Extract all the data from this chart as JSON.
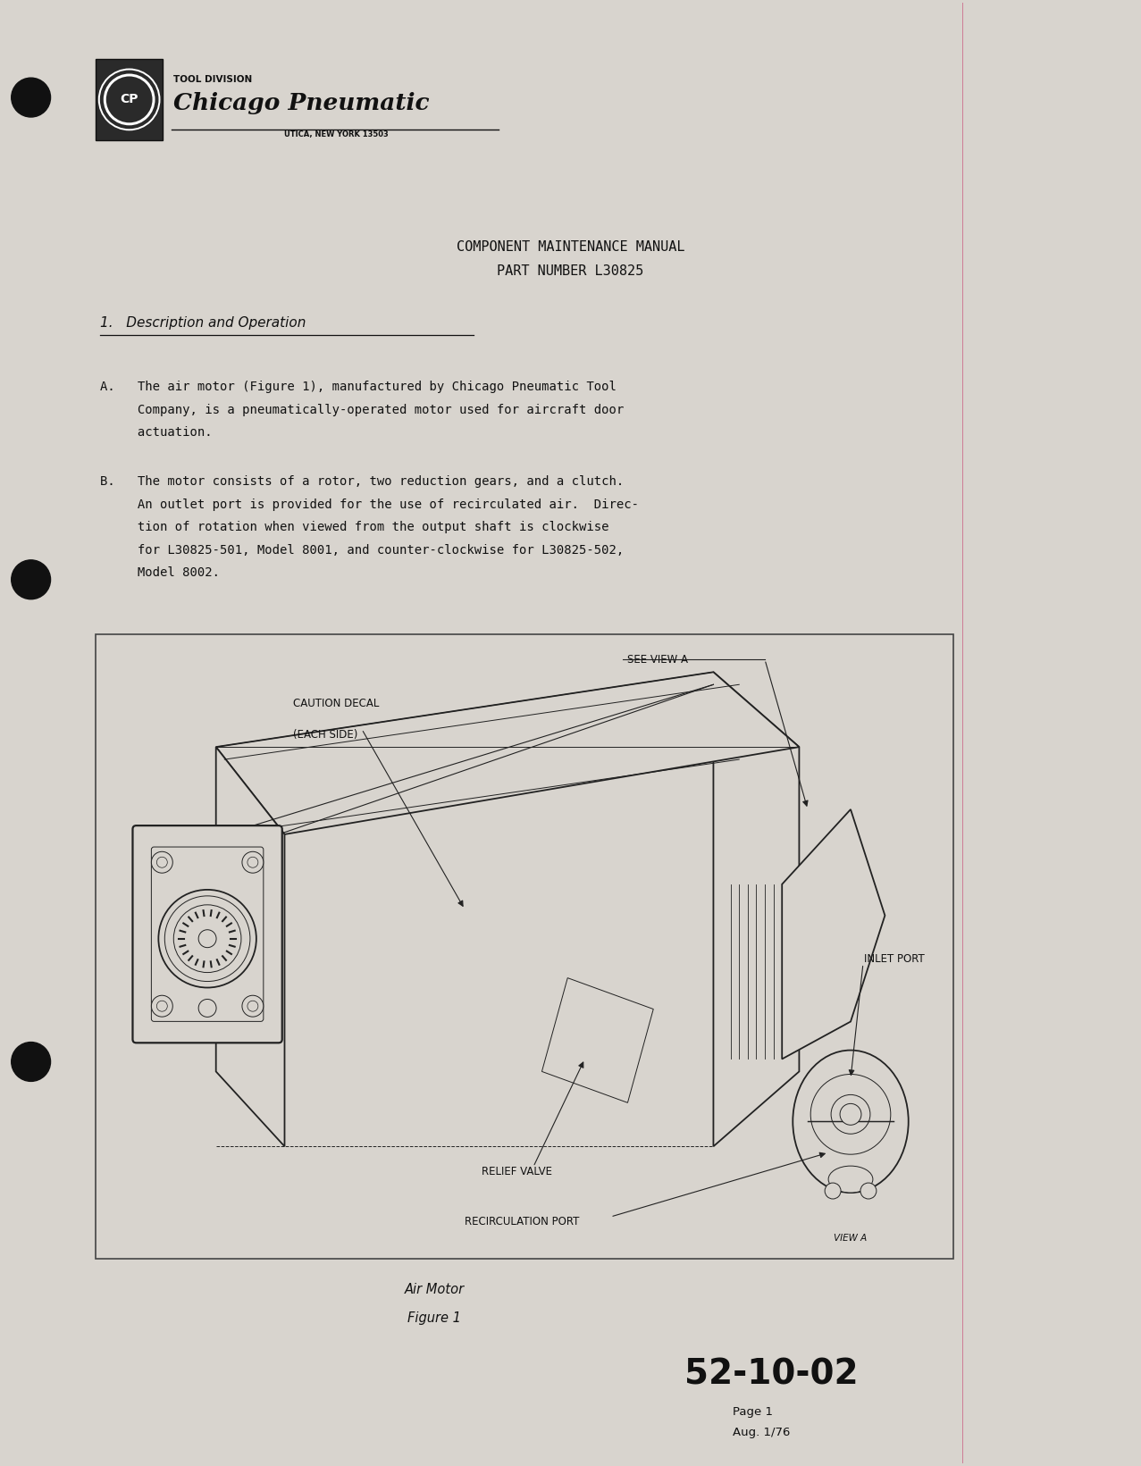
{
  "bg_color": "#d8d4ce",
  "page_width": 12.77,
  "page_height": 16.41,
  "title_line1": "COMPONENT MAINTENANCE MANUAL",
  "title_line2": "PART NUMBER L30825",
  "section_header": "1.   Description and Operation",
  "para_A_lines": [
    "A.   The air motor (Figure 1), manufactured by Chicago Pneumatic Tool",
    "     Company, is a pneumatically-operated motor used for aircraft door",
    "     actuation."
  ],
  "para_B_lines": [
    "B.   The motor consists of a rotor, two reduction gears, and a clutch.",
    "     An outlet port is provided for the use of recirculated air.  Direc-",
    "     tion of rotation when viewed from the output shaft is clockwise",
    "     for L30825-501, Model 8001, and counter-clockwise for L30825-502,",
    "     Model 8002."
  ],
  "fig_caption_line1": "Air Motor",
  "fig_caption_line2": "Figure 1",
  "page_num_large": "52-10-02",
  "page_num_small1": "Page 1",
  "page_num_small2": "Aug. 1/76",
  "logo_text_top": "TOOL DIVISION",
  "logo_text_main": "Chicago Pneumatic",
  "logo_text_sub": "UTICA, NEW YORK 13503",
  "hole_color": "#111111",
  "line_color": "#cc6688",
  "text_color": "#111111",
  "draw_color": "#222222"
}
